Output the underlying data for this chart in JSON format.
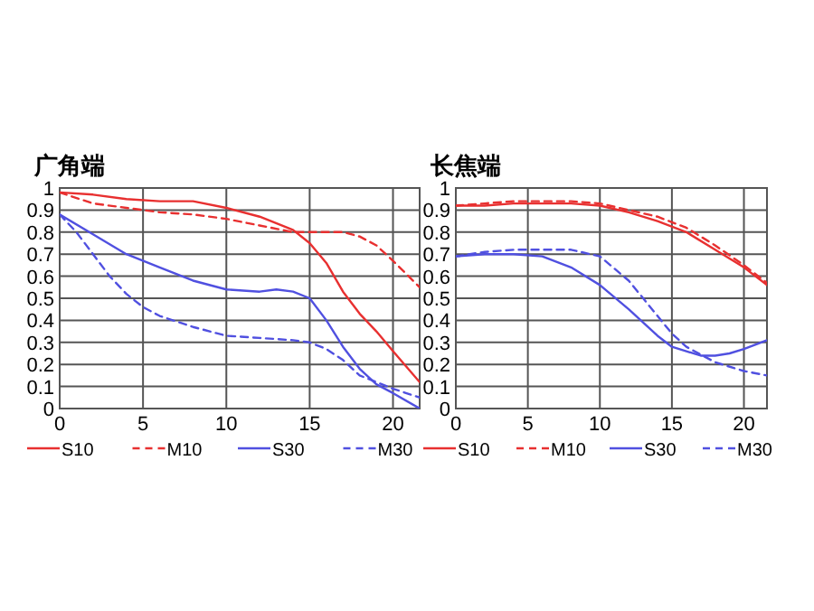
{
  "chart_data": [
    {
      "type": "line",
      "title": "广角端",
      "xlim": [
        0,
        21.6
      ],
      "ylim": [
        0,
        1
      ],
      "xticks": [
        0,
        5,
        10,
        15,
        20
      ],
      "yticks": [
        0,
        0.1,
        0.2,
        0.3,
        0.4,
        0.5,
        0.6,
        0.7,
        0.8,
        0.9,
        1
      ],
      "grid": true,
      "legend": "bottom",
      "series": [
        {
          "name": "S10",
          "color": "#e83030",
          "line_style": "solid",
          "x": [
            0,
            2,
            4,
            6,
            8,
            10,
            12,
            14,
            15,
            16,
            17,
            18,
            19,
            20,
            21.6
          ],
          "values": [
            0.98,
            0.97,
            0.95,
            0.94,
            0.94,
            0.91,
            0.87,
            0.81,
            0.75,
            0.66,
            0.53,
            0.43,
            0.35,
            0.26,
            0.12
          ]
        },
        {
          "name": "M10",
          "color": "#e83030",
          "line_style": "dashed",
          "x": [
            0,
            2,
            4,
            6,
            8,
            10,
            12,
            14,
            16,
            17,
            18,
            19,
            20,
            21.6
          ],
          "values": [
            0.98,
            0.93,
            0.91,
            0.89,
            0.88,
            0.86,
            0.83,
            0.8,
            0.8,
            0.8,
            0.78,
            0.74,
            0.67,
            0.55
          ]
        },
        {
          "name": "S30",
          "color": "#5050e0",
          "line_style": "solid",
          "x": [
            0,
            2,
            4,
            6,
            8,
            10,
            12,
            13,
            14,
            15,
            16,
            17,
            18,
            19,
            20,
            21.6
          ],
          "values": [
            0.88,
            0.79,
            0.7,
            0.64,
            0.58,
            0.54,
            0.53,
            0.54,
            0.53,
            0.5,
            0.4,
            0.28,
            0.18,
            0.11,
            0.07,
            0
          ]
        },
        {
          "name": "M30",
          "color": "#5050e0",
          "line_style": "dashed",
          "x": [
            0,
            1,
            2,
            3,
            4,
            5,
            6,
            8,
            10,
            12,
            14,
            15,
            16,
            17,
            18,
            20,
            21.6
          ],
          "values": [
            0.88,
            0.8,
            0.7,
            0.6,
            0.52,
            0.46,
            0.42,
            0.37,
            0.33,
            0.32,
            0.31,
            0.3,
            0.27,
            0.22,
            0.15,
            0.09,
            0.05
          ]
        }
      ]
    },
    {
      "type": "line",
      "title": "长焦端",
      "xlim": [
        0,
        21.6
      ],
      "ylim": [
        0,
        1
      ],
      "xticks": [
        0,
        5,
        10,
        15,
        20
      ],
      "yticks": [
        0,
        0.1,
        0.2,
        0.3,
        0.4,
        0.5,
        0.6,
        0.7,
        0.8,
        0.9,
        1
      ],
      "grid": true,
      "legend": "bottom",
      "series": [
        {
          "name": "S10",
          "color": "#e83030",
          "line_style": "solid",
          "x": [
            0,
            2,
            4,
            6,
            8,
            10,
            12,
            14,
            16,
            18,
            20,
            21.6
          ],
          "values": [
            0.92,
            0.92,
            0.93,
            0.93,
            0.93,
            0.92,
            0.89,
            0.85,
            0.8,
            0.72,
            0.64,
            0.56
          ]
        },
        {
          "name": "M10",
          "color": "#e83030",
          "line_style": "dashed",
          "x": [
            0,
            2,
            4,
            6,
            8,
            10,
            12,
            14,
            16,
            18,
            20,
            21.6
          ],
          "values": [
            0.92,
            0.93,
            0.94,
            0.94,
            0.94,
            0.93,
            0.9,
            0.87,
            0.82,
            0.74,
            0.65,
            0.57
          ]
        },
        {
          "name": "S30",
          "color": "#5050e0",
          "line_style": "solid",
          "x": [
            0,
            2,
            4,
            6,
            8,
            10,
            12,
            14,
            15,
            16,
            17,
            18,
            19,
            20,
            21.6
          ],
          "values": [
            0.69,
            0.7,
            0.7,
            0.69,
            0.64,
            0.56,
            0.45,
            0.33,
            0.28,
            0.26,
            0.24,
            0.24,
            0.25,
            0.27,
            0.31
          ]
        },
        {
          "name": "M30",
          "color": "#5050e0",
          "line_style": "dashed",
          "x": [
            0,
            2,
            4,
            6,
            8,
            10,
            12,
            14,
            15,
            16,
            18,
            20,
            21.6
          ],
          "values": [
            0.69,
            0.71,
            0.72,
            0.72,
            0.72,
            0.69,
            0.58,
            0.42,
            0.34,
            0.28,
            0.21,
            0.17,
            0.15
          ]
        }
      ]
    }
  ]
}
